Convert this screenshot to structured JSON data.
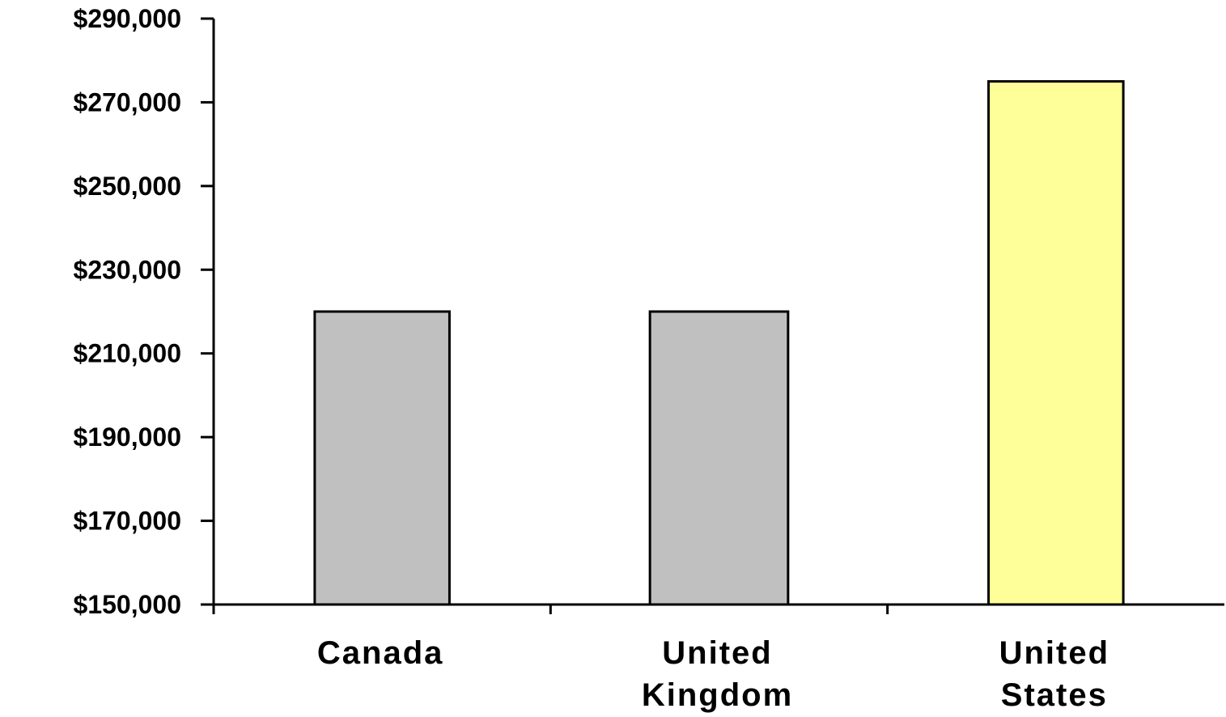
{
  "chart_data": {
    "type": "bar",
    "title": "",
    "xlabel": "",
    "ylabel": "",
    "categories": [
      [
        "Canada"
      ],
      [
        "United",
        "Kingdom"
      ],
      [
        "United",
        "States"
      ]
    ],
    "values": [
      220000,
      220000,
      275000
    ],
    "bar_colors": [
      "#c0c0c0",
      "#c0c0c0",
      "#ffff99"
    ],
    "ylim": [
      150000,
      290000
    ],
    "yticks": [
      150000,
      170000,
      190000,
      210000,
      230000,
      250000,
      270000,
      290000
    ],
    "ytick_labels": [
      "$150,000",
      "$170,000",
      "$190,000",
      "$210,000",
      "$230,000",
      "$250,000",
      "$270,000",
      "$290,000"
    ],
    "grid": false,
    "legend": "none"
  }
}
